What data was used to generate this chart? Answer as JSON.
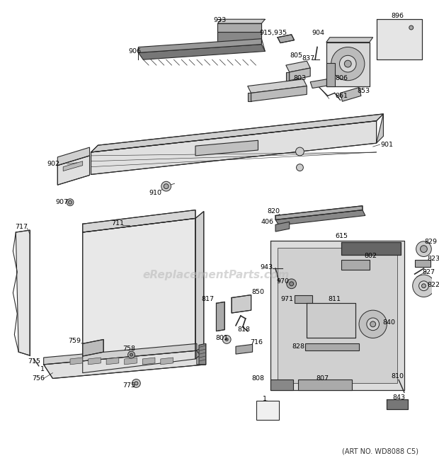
{
  "bg_color": "#ffffff",
  "line_color": "#2a2a2a",
  "text_color": "#000000",
  "watermark_text": "eReplacementParts.com",
  "watermark_color": "#bbbbbb",
  "watermark_fontsize": 11,
  "art_no_text": "(ART NO. WD8088 C5)",
  "art_no_fontsize": 7,
  "figsize": [
    6.2,
    6.61
  ],
  "dpi": 100
}
